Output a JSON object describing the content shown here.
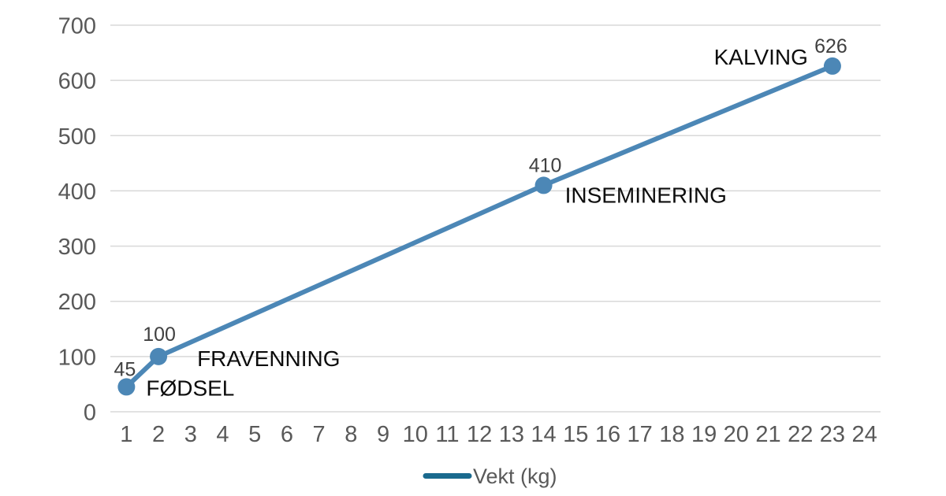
{
  "chart_data": {
    "type": "line",
    "title": "",
    "xlabel": "",
    "ylabel": "",
    "x_axis": {
      "ticks": [
        1,
        2,
        3,
        4,
        5,
        6,
        7,
        8,
        9,
        10,
        11,
        12,
        13,
        14,
        15,
        16,
        17,
        18,
        19,
        20,
        21,
        22,
        23,
        24
      ],
      "min": 1,
      "max": 24
    },
    "y_axis": {
      "ticks": [
        0,
        100,
        200,
        300,
        400,
        500,
        600,
        700
      ],
      "min": 0,
      "max": 700,
      "step": 100
    },
    "grid": true,
    "legend": {
      "label": "Vekt (kg)",
      "position": "bottom-center"
    },
    "series": [
      {
        "name": "Vekt (kg)",
        "points": [
          {
            "month": 1,
            "value": 45,
            "value_label": "45",
            "value_dx": -2,
            "value_dy": -14,
            "event": "FØDSEL",
            "event_anchor": "start",
            "event_dx": 25,
            "event_dy": 11
          },
          {
            "month": 2,
            "value": 100,
            "value_label": "100",
            "value_dx": 1,
            "value_dy": -20,
            "event": "FRAVENNING",
            "event_anchor": "start",
            "event_dx": 49,
            "event_dy": 12
          },
          {
            "month": 14,
            "value": 410,
            "value_label": "410",
            "value_dx": 2,
            "value_dy": -17,
            "event": "INSEMINERING",
            "event_anchor": "start",
            "event_dx": 27,
            "event_dy": 22
          },
          {
            "month": 23,
            "value": 626,
            "value_label": "626",
            "value_dx": -2,
            "value_dy": -17,
            "event": "KALVING",
            "event_anchor": "end",
            "event_dx": -31,
            "event_dy": -2
          }
        ]
      }
    ],
    "colors": {
      "line": "#4C87B6",
      "marker": "#4C87B6",
      "legend_line": "#1A6A8E",
      "grid": "#D8D8D8",
      "axis_text": "#595959",
      "value_text": "#404040",
      "annotation_text": "#0d0d0d",
      "legend_text": "#595959",
      "background": "#ffffff"
    }
  }
}
